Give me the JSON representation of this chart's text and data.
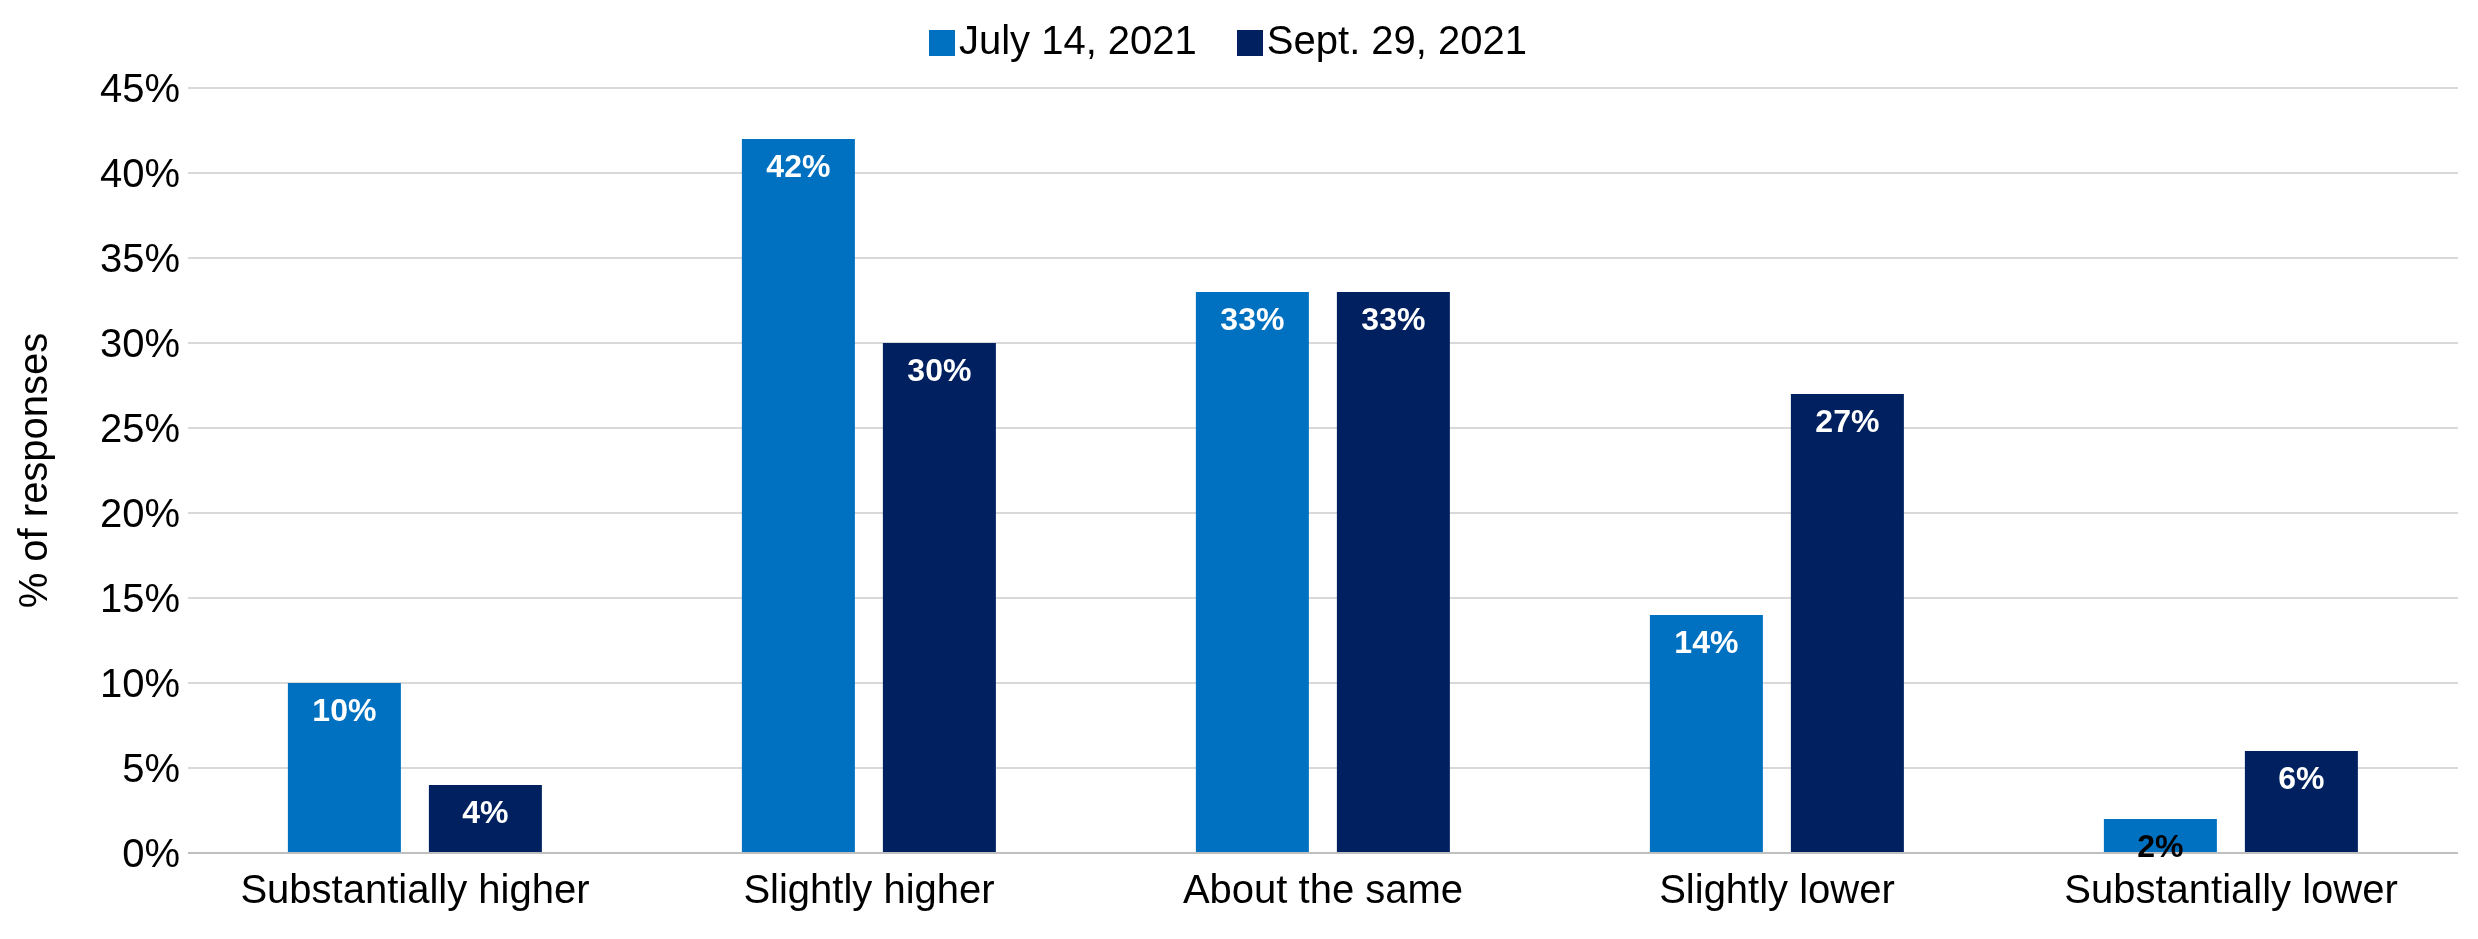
{
  "chart_data": {
    "type": "bar",
    "ylabel": "% of responses",
    "categories": [
      "Substantially higher",
      "Slightly higher",
      "About the same",
      "Slightly lower",
      "Substantially lower"
    ],
    "series": [
      {
        "name": "July 14, 2021",
        "color": "#0070c0",
        "values": [
          10,
          42,
          33,
          14,
          2
        ],
        "value_labels": [
          "10%",
          "42%",
          "33%",
          "14%",
          "2%"
        ]
      },
      {
        "name": "Sept. 29, 2021",
        "color": "#002060",
        "values": [
          4,
          30,
          33,
          27,
          6
        ],
        "value_labels": [
          "4%",
          "30%",
          "33%",
          "27%",
          "6%"
        ]
      }
    ],
    "ylim": [
      0,
      45
    ],
    "yticks": [
      {
        "value": 0,
        "label": "0%"
      },
      {
        "value": 5,
        "label": "5%"
      },
      {
        "value": 10,
        "label": "10%"
      },
      {
        "value": 15,
        "label": "15%"
      },
      {
        "value": 20,
        "label": "20%"
      },
      {
        "value": 25,
        "label": "25%"
      },
      {
        "value": 30,
        "label": "30%"
      },
      {
        "value": 35,
        "label": "35%"
      },
      {
        "value": 40,
        "label": "40%"
      },
      {
        "value": 45,
        "label": "45%"
      }
    ],
    "grid": "y",
    "legend": "top"
  }
}
